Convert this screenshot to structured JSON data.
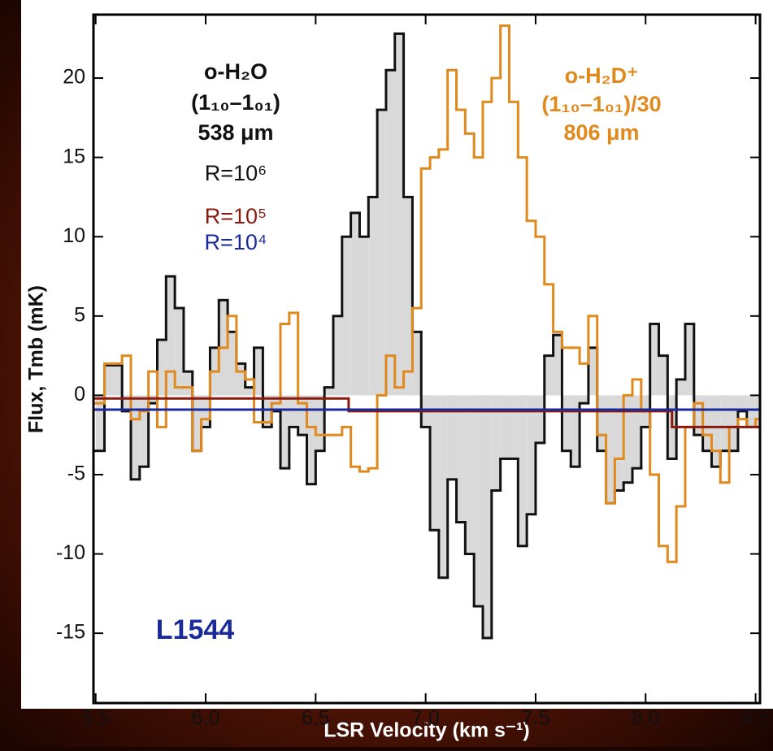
{
  "chart_data": {
    "type": "step",
    "xlabel": "LSR Velocity (km s⁻¹)",
    "ylabel": "Flux, Tmb (mK)",
    "xlim": [
      5.49,
      8.52
    ],
    "ylim": [
      -19.4,
      24
    ],
    "xticks": [
      5.5,
      {
        "value": 6,
        "label": "6.0"
      },
      6.5,
      {
        "value": 7,
        "label": "7.0"
      },
      7.5,
      {
        "value": 8,
        "label": "8.0"
      },
      8.5
    ],
    "yticks": [
      -15,
      -10,
      -5,
      0,
      5,
      10,
      15,
      20
    ],
    "x": [
      5.5,
      5.54,
      5.58,
      5.62,
      5.66,
      5.7,
      5.74,
      5.78,
      5.82,
      5.86,
      5.9,
      5.94,
      5.98,
      6.02,
      6.06,
      6.1,
      6.14,
      6.18,
      6.22,
      6.26,
      6.3,
      6.34,
      6.38,
      6.42,
      6.46,
      6.5,
      6.54,
      6.58,
      6.62,
      6.66,
      6.7,
      6.74,
      6.78,
      6.82,
      6.86,
      6.9,
      6.94,
      6.98,
      7.02,
      7.06,
      7.1,
      7.14,
      7.18,
      7.22,
      7.26,
      7.3,
      7.34,
      7.38,
      7.42,
      7.46,
      7.5,
      7.54,
      7.58,
      7.62,
      7.66,
      7.7,
      7.74,
      7.78,
      7.82,
      7.86,
      7.9,
      7.94,
      7.98,
      8.02,
      8.06,
      8.1,
      8.14,
      8.18,
      8.22,
      8.26,
      8.3,
      8.34,
      8.38,
      8.42,
      8.46,
      8.5
    ],
    "series": [
      {
        "name": "o-H₂O",
        "color": "#111111",
        "fill": "#d9d9d9",
        "values": [
          -3.5,
          1.9,
          1.9,
          -1,
          -5.3,
          -4.5,
          -0.5,
          3.5,
          7.5,
          5.5,
          1.5,
          -3.5,
          -2,
          3,
          6,
          4,
          2,
          0.5,
          3,
          -2,
          -1,
          -4.6,
          -2,
          -2.5,
          -5.6,
          -3.5,
          0.5,
          5,
          10,
          11.5,
          10,
          12.5,
          18,
          20.5,
          22.8,
          12.5,
          4,
          -2,
          -8.5,
          -11.5,
          -5.3,
          -8,
          -10,
          -13.3,
          -15.3,
          -6,
          -4,
          -4,
          -9.5,
          -7.5,
          -3,
          2.5,
          3.8,
          -3.5,
          -4.5,
          -0.5,
          3,
          -3.5,
          -6.8,
          -6,
          -5.5,
          -4.6,
          -2,
          4.5,
          2.5,
          -4,
          1,
          4.5,
          -2.5,
          -3.5,
          -4.5,
          -3.5,
          -3.5,
          -1,
          -2,
          -2
        ]
      },
      {
        "name": "o-H₂D⁺",
        "color": "#e08a1e",
        "values": [
          -0.5,
          2,
          2,
          2.5,
          -1.5,
          -1,
          1.5,
          -2,
          1.5,
          0.5,
          0.5,
          -3.5,
          -1.5,
          1.5,
          3,
          5,
          1.5,
          1,
          -1.7,
          -1.7,
          -0.5,
          4.5,
          5.2,
          -0.5,
          -2,
          -2.5,
          -2.5,
          -2.5,
          -2,
          -4.5,
          -4.8,
          -4.6,
          0,
          2.5,
          0.5,
          1.5,
          5.5,
          14.3,
          15,
          15.5,
          20.5,
          18,
          16.5,
          15,
          18.5,
          20,
          23.3,
          18.5,
          15,
          11,
          10,
          7,
          4,
          3,
          3,
          2,
          5,
          -2.5,
          -6.8,
          -4,
          0,
          1,
          -1,
          -5,
          -9.5,
          -10.5,
          -7,
          -2,
          -0.5,
          -2.5,
          -3.5,
          -5.5,
          -2,
          -1.5,
          -2,
          -1.5
        ]
      },
      {
        "name": "R=10⁵",
        "color": "#8b1a0e",
        "x": [
          5.49,
          6.65,
          8.12
        ],
        "values": [
          -0.2,
          -1.0,
          -2.0
        ]
      },
      {
        "name": "R=10⁴",
        "color": "#1a2a9a",
        "x": [
          5.49
        ],
        "values": [
          -0.9
        ]
      }
    ],
    "annotations": [
      "(1₁₀–1₀₁)",
      "538 μm",
      "R=10⁶",
      "(1₁₀–1₀₁)/30",
      "806 μm",
      "L1544"
    ]
  }
}
